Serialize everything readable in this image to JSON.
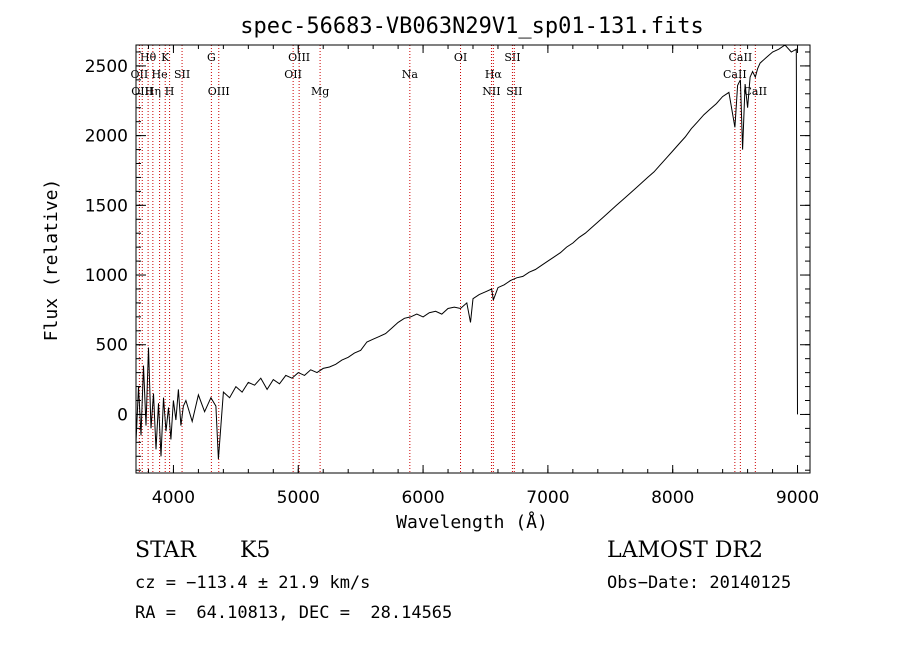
{
  "chart_data": {
    "type": "line",
    "title": "spec-56683-VB063N29V1_sp01-131.fits",
    "xlabel": "Wavelength (Å)",
    "ylabel": "Flux (relative)",
    "xlim": [
      3700,
      9100
    ],
    "ylim": [
      -420,
      2650
    ],
    "x_ticks": [
      4000,
      5000,
      6000,
      7000,
      8000,
      9000
    ],
    "y_ticks": [
      0,
      500,
      1000,
      1500,
      2000,
      2500
    ],
    "grid": false,
    "line_color": "#000000",
    "marker_color": "#cc0000",
    "series": [
      {
        "values_x": [
          3700,
          3720,
          3740,
          3760,
          3780,
          3800,
          3820,
          3840,
          3860,
          3880,
          3900,
          3920,
          3940,
          3960,
          3980,
          4000,
          4020,
          4040,
          4060,
          4080,
          4100,
          4150,
          4200,
          4250,
          4300,
          4340,
          4360,
          4400,
          4450,
          4500,
          4550,
          4600,
          4650,
          4700,
          4750,
          4800,
          4850,
          4900,
          4950,
          5000,
          5050,
          5100,
          5150,
          5200,
          5250,
          5300,
          5350,
          5400,
          5450,
          5500,
          5550,
          5600,
          5650,
          5700,
          5750,
          5800,
          5850,
          5900,
          5950,
          6000,
          6050,
          6100,
          6150,
          6200,
          6250,
          6300,
          6350,
          6380,
          6400,
          6450,
          6500,
          6550,
          6563,
          6600,
          6650,
          6700,
          6750,
          6800,
          6850,
          6900,
          6950,
          7000,
          7050,
          7100,
          7150,
          7200,
          7250,
          7300,
          7350,
          7400,
          7450,
          7500,
          7550,
          7600,
          7650,
          7700,
          7750,
          7800,
          7850,
          7900,
          7950,
          8000,
          8050,
          8100,
          8150,
          8200,
          8250,
          8300,
          8350,
          8400,
          8450,
          8498,
          8520,
          8542,
          8560,
          8580,
          8600,
          8620,
          8640,
          8662,
          8680,
          8700,
          8750,
          8800,
          8850,
          8900,
          8950,
          8990,
          9000
        ],
        "values_y": [
          -200,
          200,
          -150,
          350,
          -80,
          480,
          -100,
          150,
          -250,
          80,
          -300,
          120,
          -120,
          50,
          -180,
          100,
          -40,
          180,
          -80,
          60,
          100,
          -50,
          140,
          20,
          120,
          60,
          -320,
          160,
          120,
          200,
          160,
          230,
          210,
          260,
          180,
          250,
          220,
          280,
          260,
          300,
          280,
          320,
          300,
          330,
          340,
          360,
          390,
          410,
          440,
          460,
          520,
          540,
          560,
          580,
          620,
          660,
          690,
          700,
          720,
          700,
          730,
          740,
          720,
          760,
          770,
          760,
          800,
          660,
          830,
          860,
          880,
          900,
          820,
          910,
          930,
          960,
          980,
          990,
          1020,
          1040,
          1070,
          1100,
          1130,
          1160,
          1200,
          1230,
          1270,
          1300,
          1340,
          1380,
          1420,
          1460,
          1500,
          1540,
          1580,
          1620,
          1660,
          1700,
          1740,
          1790,
          1840,
          1890,
          1940,
          1990,
          2050,
          2100,
          2150,
          2190,
          2230,
          2280,
          2310,
          2060,
          2360,
          2400,
          1900,
          2370,
          2200,
          2420,
          2460,
          2420,
          2480,
          2520,
          2560,
          2600,
          2620,
          2650,
          2600,
          2620,
          0
        ]
      }
    ],
    "spectral_lines": [
      {
        "label": "Hθ",
        "wavelength": 3797,
        "row": 0
      },
      {
        "label": "OII",
        "wavelength": 3727,
        "row": 1
      },
      {
        "label": "OIII",
        "wavelength": 3750,
        "row": 2
      },
      {
        "label": "He",
        "wavelength": 3889,
        "row": 1
      },
      {
        "label": "K",
        "wavelength": 3934,
        "row": 0
      },
      {
        "label": "Hη",
        "wavelength": 3835,
        "row": 2
      },
      {
        "label": "SII",
        "wavelength": 4069,
        "row": 1
      },
      {
        "label": "H",
        "wavelength": 3969,
        "row": 2
      },
      {
        "label": "G",
        "wavelength": 4304,
        "row": 0
      },
      {
        "label": "OIII",
        "wavelength": 4363,
        "row": 2
      },
      {
        "label": "OIII",
        "wavelength": 5007,
        "row": 0
      },
      {
        "label": "OII",
        "wavelength": 4959,
        "row": 1
      },
      {
        "label": "Mg",
        "wavelength": 5175,
        "row": 2
      },
      {
        "label": "Na",
        "wavelength": 5894,
        "row": 1
      },
      {
        "label": "OI",
        "wavelength": 6300,
        "row": 0
      },
      {
        "label": "Hα",
        "wavelength": 6563,
        "row": 1
      },
      {
        "label": "NII",
        "wavelength": 6548,
        "row": 2
      },
      {
        "label": "SII",
        "wavelength": 6716,
        "row": 0
      },
      {
        "label": "SII",
        "wavelength": 6731,
        "row": 2
      },
      {
        "label": "CaII",
        "wavelength": 8542,
        "row": 0
      },
      {
        "label": "CaII",
        "wavelength": 8498,
        "row": 1
      },
      {
        "label": "CaII",
        "wavelength": 8662,
        "row": 2
      }
    ]
  },
  "info": {
    "class": "STAR",
    "subclass": "K5",
    "survey": "LAMOST DR2",
    "cz": "cz = −113.4 ± 21.9 km/s",
    "obs_date": "Obs−Date: 20140125",
    "radec": "RA =  64.10813, DEC =  28.14565"
  }
}
